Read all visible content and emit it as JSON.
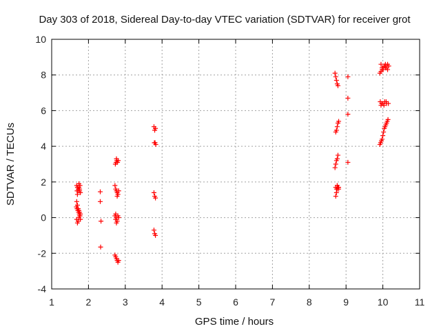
{
  "chart_data": {
    "type": "scatter",
    "title": "Day 303 of 2018, Sidereal Day-to-day VTEC variation (SDTVAR) for receiver grot",
    "xlabel": "GPS time / hours",
    "ylabel": "SDTVAR / TECUs",
    "xlim": [
      1,
      11
    ],
    "ylim": [
      -4,
      10
    ],
    "xticks": [
      1,
      2,
      3,
      4,
      5,
      6,
      7,
      8,
      9,
      10,
      11
    ],
    "yticks": [
      -4,
      -2,
      0,
      2,
      4,
      6,
      8,
      10
    ],
    "xtick_labels": [
      "1",
      "2",
      "3",
      "4",
      "5",
      "6",
      "7",
      "8",
      "9",
      "10",
      "11"
    ],
    "ytick_labels": [
      "-4",
      "-2",
      "0",
      "2",
      "4",
      "6",
      "8",
      "10"
    ],
    "grid": true,
    "marker": "+",
    "color": "#ff0000",
    "series": [
      {
        "name": "SDTVAR",
        "x": [
          1.68,
          1.7,
          1.72,
          1.74,
          1.76,
          1.78,
          1.7,
          1.72,
          1.74,
          1.76,
          1.68,
          1.7,
          1.72,
          1.74,
          1.76,
          1.78,
          1.68,
          1.7,
          1.72,
          1.74,
          1.76,
          1.78,
          1.67,
          1.69,
          1.71,
          1.73,
          1.75,
          1.77,
          1.69,
          1.73,
          1.77,
          2.32,
          2.32,
          2.34,
          2.33,
          2.72,
          2.74,
          2.76,
          2.78,
          2.8,
          2.74,
          2.76,
          2.78,
          2.8,
          2.82,
          2.72,
          2.74,
          2.76,
          2.78,
          2.8,
          2.82,
          2.73,
          2.75,
          2.77,
          2.79,
          2.81,
          2.72,
          2.74,
          2.76,
          2.78,
          2.8,
          2.82,
          2.76,
          3.78,
          3.8,
          3.82,
          3.79,
          3.81,
          3.83,
          3.78,
          3.8,
          3.82,
          3.78,
          3.8,
          3.82,
          8.7,
          8.72,
          8.74,
          8.76,
          8.78,
          8.72,
          8.74,
          8.76,
          8.78,
          8.8,
          8.72,
          8.74,
          8.76,
          8.78,
          8.8,
          8.7,
          8.72,
          8.74,
          8.76,
          8.78,
          8.72,
          8.74,
          8.76,
          8.78,
          8.8,
          9.05,
          9.05,
          9.05,
          9.05,
          9.92,
          9.95,
          9.98,
          10.01,
          10.04,
          10.07,
          10.1,
          10.13,
          10.16,
          9.95,
          9.98,
          10.01,
          10.04,
          10.07,
          10.1,
          10.13,
          9.92,
          9.94,
          9.96,
          9.98,
          10.0,
          10.02,
          10.04,
          10.06,
          10.08,
          10.1,
          10.12,
          10.14,
          9.95,
          10.0,
          10.05,
          10.1,
          9.93,
          9.97,
          10.03,
          10.09,
          10.15
        ],
        "y": [
          1.8,
          1.7,
          1.6,
          1.9,
          1.5,
          1.4,
          1.3,
          1.5,
          1.7,
          1.6,
          0.9,
          0.7,
          0.5,
          0.4,
          0.3,
          0.2,
          -0.1,
          -0.3,
          -0.2,
          0.0,
          0.1,
          -0.1,
          0.6,
          0.5,
          0.4,
          0.3,
          0.2,
          0.1,
          1.5,
          1.6,
          1.8,
          1.45,
          0.9,
          -0.2,
          -1.65,
          1.8,
          1.6,
          1.5,
          1.4,
          1.3,
          -0.1,
          0.0,
          -0.2,
          0.1,
          0.0,
          -2.1,
          -2.2,
          -2.3,
          -2.4,
          -2.5,
          -2.4,
          3.0,
          3.1,
          3.2,
          3.1,
          3.2,
          0.1,
          0.2,
          -0.3,
          1.2,
          1.3,
          1.5,
          3.3,
          5.1,
          4.9,
          5.0,
          4.2,
          4.2,
          4.1,
          1.4,
          1.2,
          1.1,
          -0.7,
          -0.9,
          -1.0,
          8.1,
          7.9,
          7.7,
          7.5,
          7.4,
          4.8,
          4.9,
          5.1,
          5.3,
          5.4,
          1.2,
          1.4,
          1.6,
          1.7,
          1.7,
          2.8,
          3.0,
          3.2,
          3.3,
          3.5,
          1.7,
          1.6,
          1.8,
          1.7,
          1.6,
          7.9,
          6.7,
          5.8,
          3.1,
          8.1,
          8.2,
          8.3,
          8.4,
          8.5,
          8.4,
          8.5,
          8.6,
          8.5,
          8.6,
          8.4,
          8.3,
          8.5,
          8.6,
          8.4,
          8.3,
          4.1,
          4.2,
          4.3,
          4.4,
          4.6,
          4.8,
          5.0,
          5.1,
          5.2,
          5.3,
          5.4,
          5.5,
          6.3,
          6.4,
          6.5,
          6.4,
          6.5,
          6.4,
          6.3,
          6.5,
          6.4
        ]
      }
    ]
  }
}
